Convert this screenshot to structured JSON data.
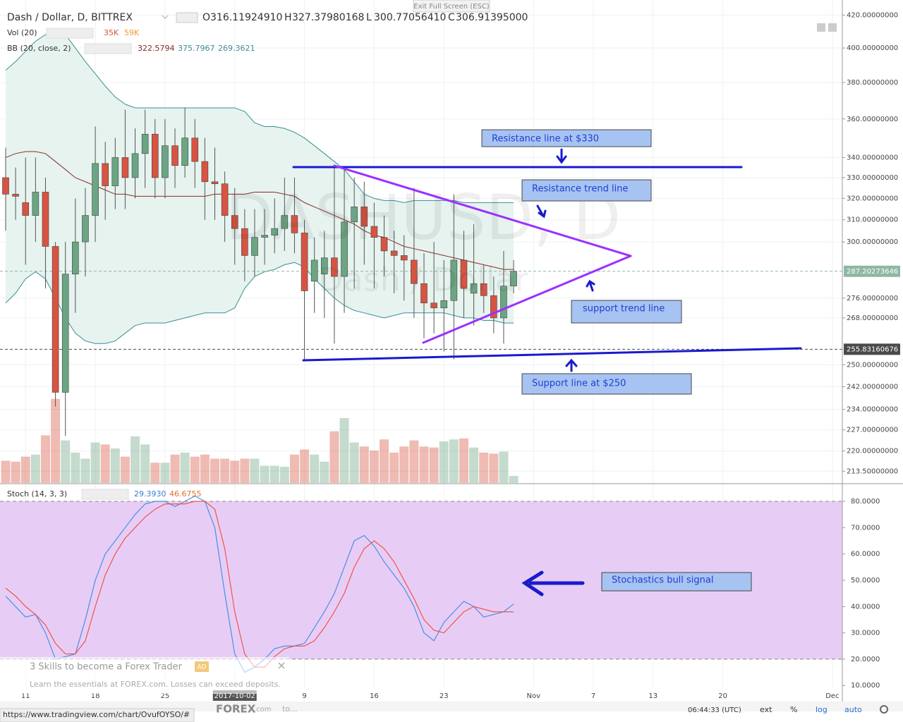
{
  "ui": {
    "exit": "Exit Full Screen (ESC)",
    "symbol": "Dash / Dollar, D, BITTREX",
    "ohlc": [
      {
        "k": "O",
        "v": "316.11924910"
      },
      {
        "k": "H",
        "v": "327.37980168"
      },
      {
        "k": "L",
        "v": "300.77056410"
      },
      {
        "k": "C",
        "v": "306.91395000"
      }
    ],
    "vol_legend": "Vol (20)",
    "vol_values": [
      "35K",
      "59K"
    ],
    "bb_legend": "BB (20, close, 2)",
    "bb_values": [
      "322.5794",
      "375.7967",
      "269.3621"
    ],
    "stoch_legend": "Stoch (14, 3, 3)",
    "stoch_values": [
      "29.3930",
      "46.6755"
    ],
    "watermark": "DASHUSD, D",
    "watermark_sub": "Dash / Dollar",
    "ad_title": "3 Skills to become a Forex Trader",
    "ad_tag": "AD",
    "ad_text": "Learn the essentials at FOREX.com. Losses can exceed deposits.",
    "bottom": {
      "time": "06:44:33 (UTC)",
      "ext": "ext",
      "pct": "%",
      "log": "log",
      "auto": "auto"
    },
    "url": "https://www.tradingview.com/chart/OvufOYSO/#",
    "logo": "FOREX",
    "logo_suffix": ".com",
    "logo_more": "to..."
  },
  "annotations": [
    "Resistance line at $330",
    "Resistance trend line",
    "support trend line",
    "Support line at $250",
    "Stochastics bull signal"
  ],
  "chart_data": [
    {
      "type": "candlestick",
      "log": true,
      "grid": true,
      "x": [
        "2017-09-09",
        "2017-09-10",
        "2017-09-11",
        "2017-09-12",
        "2017-09-13",
        "2017-09-14",
        "2017-09-15",
        "2017-09-16",
        "2017-09-17",
        "2017-09-18",
        "2017-09-19",
        "2017-09-20",
        "2017-09-21",
        "2017-09-22",
        "2017-09-23",
        "2017-09-24",
        "2017-09-25",
        "2017-09-26",
        "2017-09-27",
        "2017-09-28",
        "2017-09-29",
        "2017-09-30",
        "2017-10-01",
        "2017-10-02",
        "2017-10-03",
        "2017-10-04",
        "2017-10-05",
        "2017-10-06",
        "2017-10-07",
        "2017-10-08",
        "2017-10-09",
        "2017-10-10",
        "2017-10-11",
        "2017-10-12",
        "2017-10-13",
        "2017-10-14",
        "2017-10-15",
        "2017-10-16",
        "2017-10-17",
        "2017-10-18",
        "2017-10-19",
        "2017-10-20",
        "2017-10-21",
        "2017-10-22",
        "2017-10-23",
        "2017-10-24",
        "2017-10-25",
        "2017-10-26",
        "2017-10-27",
        "2017-10-28",
        "2017-10-29",
        "2017-10-30"
      ],
      "open": [
        330,
        322,
        318,
        312,
        323,
        298,
        240,
        286,
        300,
        312,
        337,
        326,
        340,
        330,
        342,
        352,
        330,
        346,
        336,
        350,
        338,
        328,
        327,
        312,
        306,
        294,
        302,
        303,
        306,
        312,
        304,
        283,
        286,
        293,
        285,
        309,
        316,
        307,
        302,
        296,
        294,
        292,
        282,
        274,
        272,
        275,
        292,
        278,
        282,
        277,
        268,
        281
      ],
      "high": [
        345,
        335,
        340,
        340,
        330,
        300,
        300,
        320,
        325,
        356,
        348,
        350,
        365,
        355,
        365,
        360,
        360,
        355,
        366,
        360,
        350,
        345,
        333,
        325,
        315,
        315,
        315,
        320,
        330,
        330,
        310,
        302,
        305,
        335,
        334,
        330,
        328,
        318,
        312,
        305,
        303,
        325,
        295,
        300,
        292,
        322,
        305,
        308,
        290,
        285,
        296,
        292
      ],
      "low": [
        305,
        310,
        290,
        300,
        280,
        235,
        225,
        270,
        285,
        300,
        310,
        315,
        315,
        320,
        325,
        320,
        320,
        325,
        330,
        325,
        310,
        310,
        300,
        290,
        283,
        285,
        290,
        295,
        296,
        295,
        252,
        270,
        268,
        258,
        270,
        280,
        290,
        280,
        285,
        278,
        275,
        268,
        260,
        262,
        255,
        252,
        268,
        265,
        270,
        262,
        258,
        278
      ],
      "close": [
        322,
        321,
        312,
        323,
        298,
        240,
        286,
        300,
        312,
        337,
        326,
        340,
        330,
        342,
        352,
        330,
        346,
        336,
        350,
        338,
        328,
        327,
        312,
        306,
        294,
        302,
        303,
        306,
        312,
        304,
        279,
        292,
        293,
        285,
        309,
        316,
        307,
        302,
        296,
        294,
        292,
        282,
        274,
        272,
        275,
        292,
        280,
        282,
        277,
        268,
        281,
        287.2
      ],
      "volume": [
        110,
        105,
        130,
        140,
        235,
        415,
        210,
        150,
        120,
        200,
        190,
        170,
        130,
        230,
        190,
        100,
        100,
        140,
        150,
        130,
        140,
        120,
        120,
        110,
        120,
        120,
        85,
        85,
        80,
        140,
        165,
        140,
        105,
        255,
        320,
        200,
        180,
        160,
        215,
        150,
        180,
        210,
        180,
        175,
        205,
        215,
        220,
        175,
        150,
        145,
        155,
        35
      ],
      "vlim": [
        0,
        480
      ],
      "bb": {
        "upper": [
          387,
          392,
          398,
          404,
          408,
          410,
          408,
          400,
          392,
          385,
          378,
          372,
          368,
          366,
          366,
          366,
          366,
          366,
          366,
          366,
          366,
          366,
          366,
          366,
          364,
          358,
          356,
          356,
          355,
          353,
          350,
          346,
          342,
          338,
          334,
          328,
          322,
          320,
          319,
          319,
          318,
          319,
          319,
          319,
          319,
          319,
          318,
          318,
          318,
          318,
          318,
          318
        ],
        "basis": [
          340,
          342,
          343,
          343,
          342,
          338,
          334,
          330,
          328,
          326,
          324,
          322,
          322,
          321,
          321,
          321,
          321,
          321,
          321,
          321,
          321,
          322,
          322,
          322,
          322,
          323,
          323,
          323,
          322,
          321,
          318,
          316,
          314,
          312,
          310,
          308,
          305,
          303,
          302,
          300,
          298,
          297,
          296,
          295,
          294,
          293,
          292,
          291,
          290,
          289,
          288,
          288
        ],
        "lower": [
          274,
          278,
          284,
          287,
          284,
          276,
          268,
          262,
          259,
          258,
          258,
          259,
          262,
          265,
          266,
          266,
          266,
          267,
          268,
          269,
          270,
          270,
          270,
          272,
          280,
          285,
          287,
          288,
          290,
          291,
          289,
          284,
          280,
          276,
          273,
          271,
          270,
          269,
          268,
          269,
          270,
          270,
          270,
          270,
          270,
          269,
          268,
          268,
          267,
          267,
          266,
          266
        ]
      },
      "up_color": "#6ba583",
      "down_color": "#d75442",
      "bb_color": "#3c8f94",
      "basis_color": "#8b2b2b",
      "bb_fill": "#e6f3ef",
      "xlim": [
        "2017-09-09",
        "2017-12-02"
      ],
      "xticks": [
        {
          "value": "2017-09-11",
          "label": "11"
        },
        {
          "value": "2017-09-18",
          "label": "18"
        },
        {
          "value": "2017-09-25",
          "label": "25"
        },
        {
          "value": "2017-10-02",
          "label": "2017-10-02"
        },
        {
          "value": "2017-10-09",
          "label": "9"
        },
        {
          "value": "2017-10-16",
          "label": "16"
        },
        {
          "value": "2017-10-23",
          "label": "23"
        },
        {
          "value": "2017-11-01",
          "label": "Nov"
        },
        {
          "value": "2017-11-07",
          "label": "7"
        },
        {
          "value": "2017-11-13",
          "label": "13"
        },
        {
          "value": "2017-11-20",
          "label": "20"
        },
        {
          "value": "2017-12-01",
          "label": "Dec"
        }
      ],
      "ylim": [
        209.8,
        429.5
      ],
      "yticks": [
        {
          "value": 420,
          "label": "420.00000000"
        },
        {
          "value": 400,
          "label": "400.00000000"
        },
        {
          "value": 380,
          "label": "380.00000000"
        },
        {
          "value": 360,
          "label": "360.00000000"
        },
        {
          "value": 340,
          "label": "340.00000000"
        },
        {
          "value": 330,
          "label": "330.00000000"
        },
        {
          "value": 320,
          "label": "320.00000000"
        },
        {
          "value": 310,
          "label": "310.00000000"
        },
        {
          "value": 300,
          "label": "300.00000000"
        },
        {
          "value": 276,
          "label": "276.00000000"
        },
        {
          "value": 268,
          "label": "268.00000000"
        },
        {
          "value": 250,
          "label": "250.00000000"
        },
        {
          "value": 242,
          "label": "242.00000000"
        },
        {
          "value": 234,
          "label": "234.00000000"
        },
        {
          "value": 227,
          "label": "227.00000000"
        },
        {
          "value": 220,
          "label": "220.00000000"
        },
        {
          "value": 213.5,
          "label": "213.50000000"
        }
      ],
      "price_markers": [
        {
          "value": 287.20273646,
          "label": "287.20273646",
          "color": "#8fb8a0"
        },
        {
          "value": 255.83160676,
          "label": "255.83160676",
          "color": "#4a4a4a"
        }
      ]
    },
    {
      "type": "line",
      "ylim": [
        3.9,
        86.7
      ],
      "yticks": [
        {
          "value": 80,
          "label": "80.0000"
        },
        {
          "value": 70,
          "label": "70.0000"
        },
        {
          "value": 60,
          "label": "60.0000"
        },
        {
          "value": 50,
          "label": "50.0000"
        },
        {
          "value": 40,
          "label": "40.0000"
        },
        {
          "value": 30,
          "label": "30.0000"
        },
        {
          "value": 20,
          "label": "20.0000"
        },
        {
          "value": 10,
          "label": "10.0000"
        }
      ],
      "band": [
        20,
        80
      ],
      "band_color": "#e7cdf6",
      "series": [
        {
          "color": "#4a8fe0",
          "values": [
            44,
            40,
            36,
            37,
            30,
            20,
            21,
            22,
            35,
            50,
            60,
            65,
            70,
            75,
            79,
            80,
            80,
            78,
            80,
            82,
            80,
            70,
            45,
            22,
            15,
            17,
            20,
            24,
            25,
            25,
            26,
            32,
            38,
            45,
            55,
            65,
            67,
            63,
            57,
            52,
            47,
            40,
            30,
            27,
            34,
            38,
            42,
            40,
            36,
            37,
            38,
            41
          ]
        },
        {
          "color": "#f0554a",
          "values": [
            47,
            44,
            40,
            37,
            33,
            26,
            22,
            22,
            27,
            40,
            52,
            60,
            66,
            70,
            74,
            77,
            79,
            79,
            79,
            80,
            80,
            77,
            62,
            38,
            22,
            17,
            17,
            21,
            24,
            25,
            25,
            27,
            32,
            38,
            45,
            55,
            62,
            65,
            62,
            57,
            50,
            43,
            35,
            31,
            30,
            34,
            38,
            40,
            39,
            38,
            38,
            38
          ]
        }
      ]
    }
  ]
}
